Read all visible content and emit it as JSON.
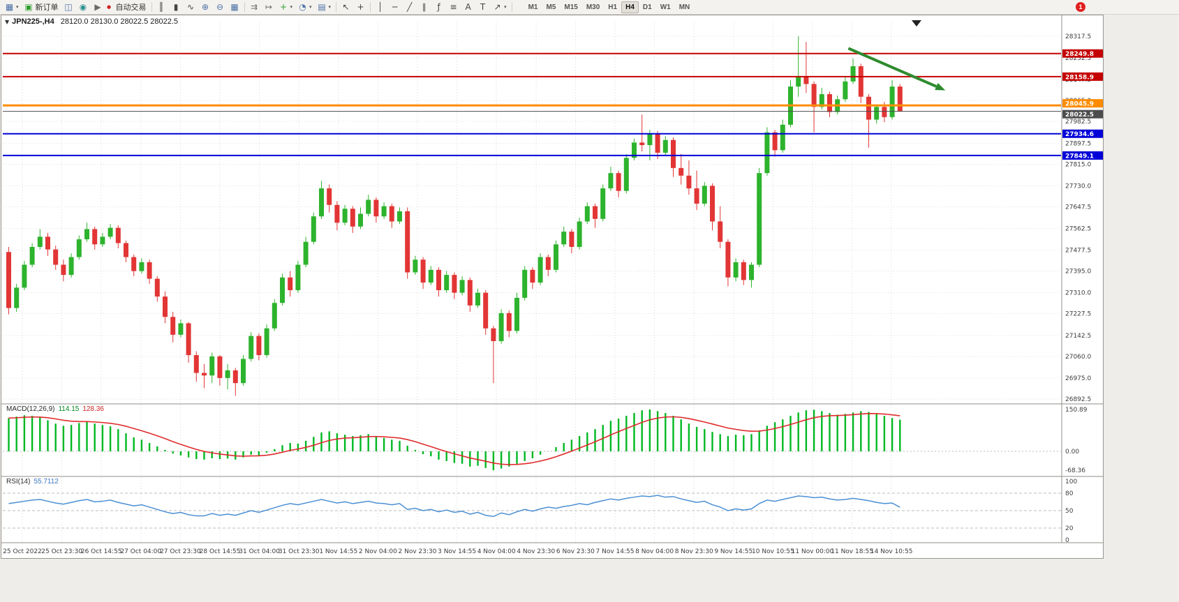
{
  "toolbar": {
    "new_order_label": "新订单",
    "autotrade_label": "自动交易",
    "timeframes": [
      "M1",
      "M5",
      "M15",
      "M30",
      "H1",
      "H4",
      "D1",
      "W1",
      "MN"
    ],
    "active_timeframe": "H4",
    "notification_count": "1",
    "icons": {
      "new_chart": "▦",
      "new_order": "▣",
      "profiles": "◫",
      "data_window": "◉",
      "autotrade_play": "▶",
      "autotrade_stop": "●",
      "chart_bars": "║",
      "chart_candles": "▮",
      "chart_line": "∿",
      "zoom_in": "⊕",
      "zoom_out": "⊖",
      "tile_windows": "▦",
      "auto_scroll": "⇉",
      "chart_shift": "↦",
      "indicators": "+",
      "periods": "◔",
      "templates": "▤",
      "cursor": "↖",
      "crosshair": "+",
      "vline": "│",
      "hline": "─",
      "trendline": "╱",
      "channel": "∥",
      "fibonacci": "ƒ",
      "shapes": "≡",
      "text": "A",
      "text_label": "T",
      "arrows": "↗",
      "caret": "▾",
      "collapse": "▼"
    }
  },
  "chart": {
    "symbol_period": "JPN225-,H4",
    "open": "28120.0",
    "high": "28130.0",
    "low": "28022.5",
    "close": "28022.5"
  },
  "chart_data": {
    "type": "candlestick",
    "symbol": "JPN225-",
    "timeframe": "H4",
    "up_color": "#2db32d",
    "down_color": "#e23535",
    "candles": [
      [
        27470,
        27490,
        27225,
        27250
      ],
      [
        27250,
        27345,
        27235,
        27330
      ],
      [
        27330,
        27435,
        27320,
        27420
      ],
      [
        27420,
        27505,
        27410,
        27490
      ],
      [
        27490,
        27560,
        27480,
        27530
      ],
      [
        27530,
        27545,
        27455,
        27480
      ],
      [
        27480,
        27495,
        27400,
        27420
      ],
      [
        27420,
        27440,
        27355,
        27380
      ],
      [
        27380,
        27465,
        27370,
        27450
      ],
      [
        27450,
        27535,
        27440,
        27520
      ],
      [
        27520,
        27585,
        27510,
        27560
      ],
      [
        27560,
        27570,
        27480,
        27500
      ],
      [
        27500,
        27545,
        27490,
        27530
      ],
      [
        27530,
        27580,
        27520,
        27565
      ],
      [
        27565,
        27575,
        27485,
        27505
      ],
      [
        27505,
        27515,
        27430,
        27450
      ],
      [
        27450,
        27460,
        27375,
        27395
      ],
      [
        27395,
        27445,
        27385,
        27430
      ],
      [
        27430,
        27440,
        27345,
        27365
      ],
      [
        27365,
        27375,
        27275,
        27295
      ],
      [
        27295,
        27315,
        27190,
        27215
      ],
      [
        27215,
        27235,
        27115,
        27145
      ],
      [
        27145,
        27205,
        27135,
        27190
      ],
      [
        27190,
        27195,
        27035,
        27065
      ],
      [
        27065,
        27080,
        26960,
        26995
      ],
      [
        26995,
        27030,
        26935,
        26985
      ],
      [
        26985,
        27075,
        26955,
        27060
      ],
      [
        27060,
        27065,
        26945,
        26975
      ],
      [
        26975,
        27030,
        26930,
        27005
      ],
      [
        27005,
        27015,
        26905,
        26955
      ],
      [
        26955,
        27065,
        26945,
        27050
      ],
      [
        27050,
        27155,
        27040,
        27140
      ],
      [
        27140,
        27150,
        27045,
        27065
      ],
      [
        27065,
        27185,
        27055,
        27170
      ],
      [
        27170,
        27285,
        27160,
        27270
      ],
      [
        27270,
        27385,
        27260,
        27370
      ],
      [
        27370,
        27395,
        27295,
        27320
      ],
      [
        27320,
        27435,
        27310,
        27420
      ],
      [
        27420,
        27530,
        27410,
        27510
      ],
      [
        27510,
        27625,
        27500,
        27610
      ],
      [
        27610,
        27750,
        27600,
        27720
      ],
      [
        27720,
        27735,
        27625,
        27655
      ],
      [
        27655,
        27670,
        27555,
        27585
      ],
      [
        27585,
        27655,
        27575,
        27640
      ],
      [
        27640,
        27650,
        27545,
        27570
      ],
      [
        27570,
        27645,
        27560,
        27620
      ],
      [
        27620,
        27695,
        27610,
        27675
      ],
      [
        27675,
        27685,
        27585,
        27610
      ],
      [
        27610,
        27665,
        27600,
        27650
      ],
      [
        27650,
        27660,
        27565,
        27590
      ],
      [
        27590,
        27645,
        27580,
        27630
      ],
      [
        27630,
        27645,
        27365,
        27390
      ],
      [
        27390,
        27455,
        27380,
        27440
      ],
      [
        27440,
        27450,
        27325,
        27350
      ],
      [
        27350,
        27415,
        27340,
        27400
      ],
      [
        27400,
        27410,
        27295,
        27320
      ],
      [
        27320,
        27395,
        27310,
        27380
      ],
      [
        27380,
        27390,
        27285,
        27310
      ],
      [
        27310,
        27375,
        27300,
        27360
      ],
      [
        27360,
        27370,
        27235,
        27260
      ],
      [
        27260,
        27325,
        27250,
        27310
      ],
      [
        27310,
        27320,
        27145,
        27170
      ],
      [
        27170,
        27180,
        26955,
        27120
      ],
      [
        27120,
        27245,
        27110,
        27230
      ],
      [
        27230,
        27240,
        27135,
        27160
      ],
      [
        27160,
        27310,
        27150,
        27290
      ],
      [
        27290,
        27415,
        27280,
        27400
      ],
      [
        27400,
        27410,
        27325,
        27350
      ],
      [
        27350,
        27465,
        27340,
        27450
      ],
      [
        27450,
        27460,
        27375,
        27400
      ],
      [
        27400,
        27515,
        27390,
        27500
      ],
      [
        27500,
        27570,
        27490,
        27550
      ],
      [
        27550,
        27560,
        27465,
        27490
      ],
      [
        27490,
        27605,
        27480,
        27590
      ],
      [
        27590,
        27665,
        27580,
        27650
      ],
      [
        27650,
        27660,
        27565,
        27600
      ],
      [
        27600,
        27735,
        27590,
        27720
      ],
      [
        27720,
        27805,
        27710,
        27780
      ],
      [
        27780,
        27790,
        27685,
        27710
      ],
      [
        27710,
        27855,
        27700,
        27840
      ],
      [
        27840,
        27915,
        27830,
        27900
      ],
      [
        27900,
        28010,
        27865,
        27890
      ],
      [
        27890,
        27950,
        27830,
        27935
      ],
      [
        27935,
        27945,
        27835,
        27860
      ],
      [
        27860,
        27925,
        27850,
        27910
      ],
      [
        27910,
        27920,
        27765,
        27800
      ],
      [
        27800,
        27855,
        27735,
        27770
      ],
      [
        27770,
        27830,
        27695,
        27720
      ],
      [
        27720,
        27790,
        27635,
        27660
      ],
      [
        27660,
        27745,
        27650,
        27730
      ],
      [
        27730,
        27740,
        27555,
        27590
      ],
      [
        27590,
        27650,
        27485,
        27510
      ],
      [
        27510,
        27520,
        27335,
        27370
      ],
      [
        27370,
        27445,
        27355,
        27430
      ],
      [
        27430,
        27440,
        27340,
        27360
      ],
      [
        27360,
        27430,
        27330,
        27420
      ],
      [
        27420,
        27800,
        27410,
        27780
      ],
      [
        27780,
        27960,
        27770,
        27940
      ],
      [
        27940,
        27950,
        27845,
        27870
      ],
      [
        27870,
        27990,
        27860,
        27970
      ],
      [
        27970,
        28145,
        27960,
        28120
      ],
      [
        28120,
        28317.5,
        28080,
        28160
      ],
      [
        28160,
        28295,
        28095,
        28130
      ],
      [
        28130,
        28140,
        27940,
        28040
      ],
      [
        28040,
        28115,
        28030,
        28090
      ],
      [
        28090,
        28100,
        28000,
        28020
      ],
      [
        28020,
        28085,
        28010,
        28070
      ],
      [
        28070,
        28160,
        28060,
        28140
      ],
      [
        28140,
        28230,
        28130,
        28200
      ],
      [
        28200,
        28210,
        28055,
        28080
      ],
      [
        28080,
        28090,
        27880,
        27990
      ],
      [
        27990,
        28050,
        27975,
        28040
      ],
      [
        28040,
        28060,
        27980,
        28000
      ],
      [
        28000,
        28145,
        27990,
        28120
      ],
      [
        28120,
        28130,
        28022.5,
        28022.5
      ]
    ],
    "price_ticks": [
      28317.5,
      28232.5,
      28147.5,
      28065.0,
      27982.5,
      27897.5,
      27815.0,
      27730.0,
      27647.5,
      27562.5,
      27477.5,
      27395.0,
      27310.0,
      27227.5,
      27142.5,
      27060.0,
      26975.0,
      26892.5
    ],
    "hlines": [
      {
        "price": 28249.8,
        "label": "28249.8",
        "color": "#c40000",
        "width": 2,
        "dy": 0
      },
      {
        "price": 28158.9,
        "label": "28158.9",
        "color": "#c40000",
        "width": 2,
        "dy": 0
      },
      {
        "price": 28045.9,
        "label": "28045.9",
        "color": "#ff8c00",
        "width": 3,
        "dy": -3
      },
      {
        "price": 28022.5,
        "label": "28022.5",
        "color": "#4c4c4c",
        "width": 1,
        "dy": 4,
        "role": "current-price"
      },
      {
        "price": 27934.6,
        "label": "27934.6",
        "color": "#0000d8",
        "width": 2,
        "dy": 0
      },
      {
        "price": 27849.1,
        "label": "27849.1",
        "color": "#0000d8",
        "width": 2,
        "dy": 0
      }
    ],
    "time_labels": [
      "25 Oct 2022",
      "25 Oct 23:30",
      "26 Oct 14:55",
      "27 Oct 04:00",
      "27 Oct 23:30",
      "28 Oct 14:55",
      "31 Oct 04:00",
      "31 Oct 23:30",
      "1 Nov 14:55",
      "2 Nov 04:00",
      "2 Nov 23:30",
      "3 Nov 14:55",
      "4 Nov 04:00",
      "4 Nov 23:30",
      "6 Nov 23:30",
      "7 Nov 14:55",
      "8 Nov 04:00",
      "8 Nov 23:30",
      "9 Nov 14:55",
      "10 Nov 10:55",
      "11 Nov 00:00",
      "11 Nov 18:55",
      "14 Nov 10:55"
    ],
    "macd": {
      "name": "MACD(12,26,9)",
      "main_value": "114.15",
      "signal_value": "128.36",
      "axis_ticks": [
        "150.89",
        "0.00",
        "-68.36"
      ],
      "axis_values": [
        150.89,
        0,
        -68.36
      ],
      "histogram": [
        120,
        125,
        130,
        128,
        122,
        112,
        100,
        92,
        95,
        102,
        108,
        100,
        95,
        90,
        80,
        65,
        50,
        42,
        30,
        18,
        5,
        -8,
        -15,
        -22,
        -28,
        -30,
        -25,
        -28,
        -26,
        -30,
        -22,
        -12,
        -15,
        -5,
        8,
        22,
        30,
        28,
        38,
        52,
        68,
        72,
        65,
        60,
        55,
        58,
        62,
        55,
        48,
        42,
        38,
        20,
        5,
        -10,
        -18,
        -30,
        -35,
        -42,
        -45,
        -55,
        -52,
        -60,
        -68.36,
        -62,
        -55,
        -45,
        -35,
        -25,
        -12,
        0,
        15,
        30,
        42,
        55,
        68,
        80,
        95,
        110,
        118,
        128,
        138,
        148,
        150.89,
        145,
        138,
        128,
        115,
        100,
        88,
        80,
        70,
        62,
        55,
        60,
        58,
        62,
        75,
        92,
        105,
        115,
        128,
        140,
        148,
        150,
        145,
        138,
        132,
        135,
        140,
        145,
        142,
        135,
        128,
        120,
        114.15
      ]
    },
    "rsi": {
      "name": "RSI(14)",
      "value": "55.7112",
      "levels": [
        80,
        50,
        20
      ],
      "axis_ticks": [
        "100",
        "80",
        "50",
        "20",
        "0"
      ],
      "axis_values": [
        100,
        80,
        50,
        20,
        0
      ],
      "series": [
        62,
        64,
        66,
        68,
        69,
        66,
        63,
        61,
        64,
        67,
        69,
        65,
        66,
        68,
        64,
        61,
        58,
        60,
        56,
        52,
        48,
        45,
        47,
        43,
        41,
        41,
        45,
        42,
        44,
        42,
        46,
        50,
        47,
        51,
        55,
        59,
        62,
        60,
        63,
        66,
        69,
        66,
        63,
        65,
        62,
        64,
        66,
        63,
        62,
        60,
        62,
        52,
        54,
        50,
        52,
        48,
        51,
        47,
        49,
        44,
        47,
        42,
        40,
        46,
        43,
        48,
        52,
        49,
        53,
        56,
        54,
        57,
        59,
        62,
        60,
        64,
        67,
        70,
        68,
        71,
        73,
        75,
        74,
        76,
        73,
        74,
        70,
        67,
        64,
        66,
        60,
        56,
        50,
        53,
        51,
        53,
        62,
        68,
        66,
        69,
        72,
        75,
        74,
        72,
        73,
        70,
        68,
        69,
        71,
        69,
        67,
        64,
        62,
        63,
        55.71
      ]
    },
    "annotation_arrow": {
      "from_bar": 107.4,
      "from_price": 28270,
      "to_bar": 119.8,
      "to_price": 28105,
      "color": "#2e8b2e"
    }
  }
}
